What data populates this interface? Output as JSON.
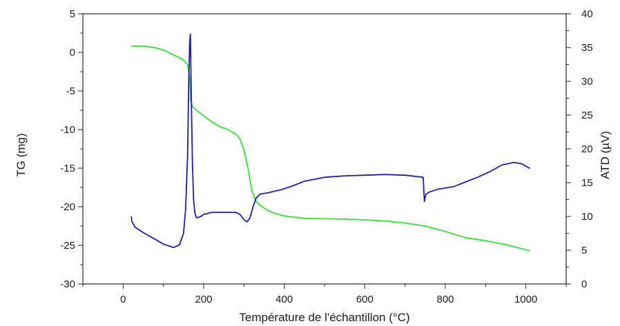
{
  "chart_data": {
    "type": "line",
    "xlabel": "Température de l'échantillon (°C)",
    "ylabel_left": "TG (mg)",
    "ylabel_right": "ATD (µV)",
    "xlim": [
      -100,
      1100
    ],
    "ylim_left": [
      -30,
      5
    ],
    "ylim_right": [
      0,
      40
    ],
    "x_ticks": [
      0,
      200,
      400,
      600,
      800,
      1000
    ],
    "y_left_ticks": [
      5,
      0,
      -5,
      -10,
      -15,
      -20,
      -25,
      -30
    ],
    "y_right_ticks": [
      40,
      35,
      30,
      25,
      20,
      15,
      10,
      5,
      0
    ],
    "grid": false,
    "series": [
      {
        "axis": "left",
        "color": "#33e033",
        "x": [
          20,
          50,
          80,
          100,
          120,
          140,
          150,
          160,
          165,
          168,
          172,
          180,
          200,
          220,
          240,
          260,
          280,
          290,
          300,
          310,
          320,
          330,
          340,
          360,
          380,
          400,
          450,
          500,
          550,
          600,
          650,
          700,
          750,
          800,
          850,
          900,
          950,
          1010
        ],
        "values": [
          0.8,
          0.8,
          0.6,
          0.3,
          -0.2,
          -0.7,
          -1.0,
          -1.6,
          -3.2,
          -6.2,
          -7.0,
          -7.4,
          -8.2,
          -9.0,
          -9.6,
          -10.0,
          -10.6,
          -11.2,
          -12.6,
          -15.0,
          -18.0,
          -19.3,
          -19.8,
          -20.5,
          -20.9,
          -21.2,
          -21.5,
          -21.55,
          -21.6,
          -21.7,
          -21.85,
          -22.1,
          -22.5,
          -23.2,
          -24.0,
          -24.4,
          -24.9,
          -25.7
        ]
      },
      {
        "axis": "right",
        "color": "#1c1cb0",
        "x": [
          20,
          22,
          30,
          50,
          80,
          100,
          125,
          140,
          150,
          155,
          160,
          163,
          165,
          167,
          168,
          170,
          172,
          175,
          178,
          182,
          190,
          200,
          220,
          250,
          280,
          290,
          300,
          308,
          315,
          322,
          330,
          340,
          360,
          380,
          390,
          400,
          420,
          450,
          500,
          550,
          600,
          650,
          700,
          745,
          748,
          750,
          752,
          760,
          780,
          800,
          820,
          850,
          880,
          910,
          940,
          970,
          990,
          1010
        ],
        "values": [
          10.0,
          9.2,
          8.4,
          7.6,
          6.6,
          5.9,
          5.4,
          5.8,
          7.5,
          11.0,
          19.0,
          30.0,
          35.5,
          37.0,
          33.0,
          25.0,
          18.0,
          12.5,
          10.5,
          9.8,
          9.9,
          10.3,
          10.6,
          10.6,
          10.6,
          10.3,
          9.5,
          9.2,
          9.8,
          11.3,
          12.7,
          13.3,
          13.5,
          13.8,
          13.9,
          14.1,
          14.5,
          15.2,
          15.8,
          16.0,
          16.1,
          16.2,
          16.1,
          15.8,
          12.2,
          12.8,
          13.3,
          13.6,
          14.0,
          14.2,
          14.4,
          15.1,
          15.8,
          16.6,
          17.6,
          18.0,
          17.8,
          17.1
        ]
      }
    ]
  }
}
